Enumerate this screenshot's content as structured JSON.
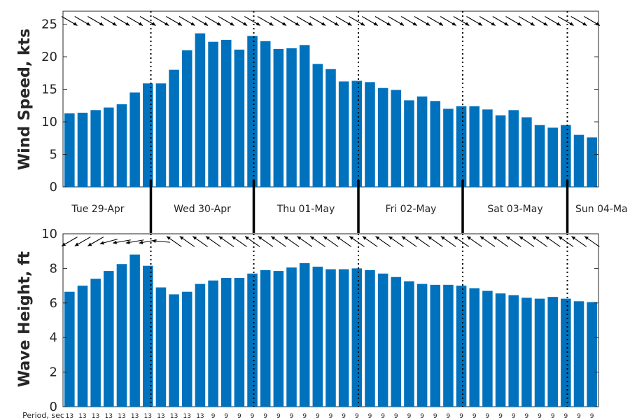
{
  "colors": {
    "bar": "#0072bd",
    "axis": "#262626",
    "arrow": "#000000"
  },
  "days": [
    "Tue 29-Apr",
    "Wed 30-Apr",
    "Thu 01-May",
    "Fri 02-May",
    "Sat 03-May",
    "Sun 04-Ma"
  ],
  "period_label": "Period, sec",
  "chart_data": [
    {
      "type": "bar",
      "ylabel": "Wind Speed, kts",
      "ylim": [
        0,
        27
      ],
      "yticks": [
        "0",
        "5",
        "10",
        "15",
        "20",
        "25"
      ],
      "grid": false,
      "values": [
        11.3,
        11.4,
        11.8,
        12.2,
        12.7,
        14.5,
        15.9,
        15.9,
        18.0,
        21.0,
        23.6,
        22.3,
        22.6,
        21.1,
        23.2,
        22.4,
        21.2,
        21.3,
        21.8,
        18.9,
        18.1,
        16.2,
        16.3,
        16.1,
        15.2,
        14.9,
        13.3,
        13.9,
        13.2,
        12.0,
        12.4,
        12.4,
        11.9,
        11.0,
        11.8,
        10.7,
        9.5,
        9.1,
        9.5,
        8.0,
        7.6
      ],
      "direction_arrows_deg": [
        120,
        120,
        120,
        120,
        120,
        120,
        120,
        120,
        120,
        120,
        120,
        120,
        120,
        120,
        120,
        120,
        120,
        120,
        120,
        120,
        120,
        120,
        120,
        120,
        120,
        120,
        120,
        120,
        120,
        120,
        120,
        120,
        120,
        120,
        120,
        120,
        120,
        120,
        120,
        120,
        120
      ]
    },
    {
      "type": "bar",
      "ylabel": "Wave Height, ft",
      "ylim": [
        0,
        10
      ],
      "yticks": [
        "0",
        "2",
        "4",
        "6",
        "8",
        "10"
      ],
      "grid": false,
      "values": [
        6.65,
        7.0,
        7.4,
        7.85,
        8.25,
        8.8,
        8.15,
        6.9,
        6.5,
        6.65,
        7.1,
        7.3,
        7.45,
        7.45,
        7.7,
        7.9,
        7.85,
        8.05,
        8.3,
        8.1,
        7.95,
        7.95,
        8.0,
        7.9,
        7.7,
        7.5,
        7.25,
        7.1,
        7.05,
        7.05,
        7.0,
        6.85,
        6.7,
        6.55,
        6.45,
        6.3,
        6.25,
        6.35,
        6.25,
        6.1,
        6.05
      ],
      "direction_arrows_deg": [
        240,
        240,
        240,
        255,
        260,
        260,
        260,
        275,
        305,
        305,
        305,
        305,
        305,
        305,
        305,
        305,
        305,
        305,
        305,
        305,
        305,
        305,
        305,
        305,
        305,
        305,
        305,
        305,
        305,
        305,
        305,
        305,
        305,
        305,
        305,
        305,
        305,
        305,
        305,
        305,
        305
      ]
    }
  ],
  "period_sec": [
    "13",
    "13",
    "13",
    "13",
    "13",
    "13",
    "13",
    "13",
    "13",
    "13",
    "13",
    "9",
    "9",
    "9",
    "9",
    "9",
    "9",
    "9",
    "9",
    "9",
    "9",
    "9",
    "9",
    "9",
    "9",
    "9",
    "9",
    "9",
    "9",
    "9",
    "9",
    "9",
    "9",
    "9",
    "9",
    "9",
    "9",
    "9",
    "9",
    "9",
    "9"
  ]
}
